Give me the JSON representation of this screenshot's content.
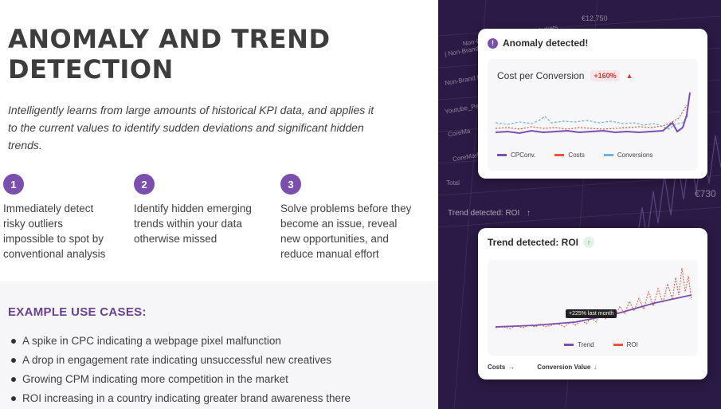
{
  "title_line1": "ANOMALY AND TREND",
  "title_line2": "DETECTION",
  "intro": "Intelligently learns from large amounts of historical KPI data, and applies it to the current values to identify sudden deviations and significant hidden trends.",
  "steps": [
    {
      "num": "1",
      "text": "Immediately detect risky outliers impossible to spot by conventional analysis"
    },
    {
      "num": "2",
      "text": "Identify hidden emerging trends within your data otherwise missed"
    },
    {
      "num": "3",
      "text": "Solve problems before they become an issue, reveal new opportunities, and reduce manual effort"
    }
  ],
  "use_cases": {
    "title": "EXAMPLE USE CASES:",
    "items": [
      "A spike in CPC indicating a webpage pixel malfunction",
      "A drop in engagement rate indicating unsuccessful new creatives",
      "Growing CPM indicating more competition in the market",
      "ROI increasing in a country indicating greater brand awareness there"
    ]
  },
  "background": {
    "rows": [
      "Non-Brand | Brand | Core Markets",
      "| Non-Brand",
      "Non-Brand | Bra",
      "Youtube_Pe",
      "CoreMa",
      "CoreMarke",
      "Total"
    ],
    "amounts": [
      "€12,750",
      "€730"
    ],
    "trend_label": "Trend detected: ROI",
    "trend_arrow": "↑"
  },
  "anomaly_card": {
    "icon": "!",
    "title": "Anomaly detected!",
    "metric": "Cost per Conversion",
    "change": "+160%",
    "change_arrow": "▲",
    "legend": [
      "CPConv.",
      "Costs",
      "Conversions"
    ]
  },
  "trend_card": {
    "title": "Trend detected: ROI",
    "arrow": "↑",
    "tooltip": "+225% last month",
    "legend": [
      "Trend",
      "ROI"
    ],
    "footer": [
      {
        "label": "Costs",
        "icon": "→"
      },
      {
        "label": "Conversion Value",
        "icon": "↓"
      }
    ]
  },
  "colors": {
    "accent": "#7b4fae",
    "dark_panel": "#2b1a45",
    "costs": "#e8553f",
    "conversions": "#6fb3e0"
  }
}
